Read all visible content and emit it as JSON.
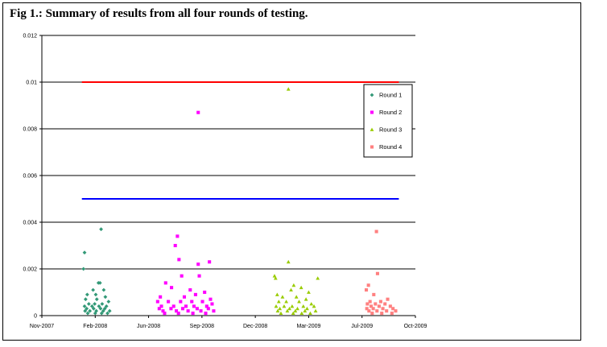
{
  "chart_data": {
    "type": "scatter",
    "title": "Fig 1.: Summary of results from all four rounds of testing.",
    "xlabel": "",
    "ylabel": "",
    "ylim": [
      0,
      0.012
    ],
    "yticks": [
      "0",
      "0.002",
      "0.004",
      "0.006",
      "0.008",
      "0.01",
      "0.012"
    ],
    "xlim": [
      "2007-11-01",
      "2009-10-01"
    ],
    "xticks": [
      "Nov-2007",
      "Feb-2008",
      "Jun-2008",
      "Sep-2008",
      "Dec-2008",
      "Mar-2009",
      "Jul-2009",
      "Oct-2009"
    ],
    "grid": "horizontal major gridlines",
    "legend_position": "right",
    "reference_lines": [
      {
        "y": 0.01,
        "color": "#ff0000",
        "x_start": "2008-01-15",
        "x_end": "2009-08-31"
      },
      {
        "y": 0.005,
        "color": "#0000ff",
        "x_start": "2008-01-15",
        "x_end": "2009-08-31"
      }
    ],
    "series": [
      {
        "name": "Round 1",
        "color": "#339977",
        "marker": "diamond",
        "points": [
          [
            "2008-02-20",
            0.0037
          ],
          [
            "2008-01-20",
            0.0027
          ],
          [
            "2008-01-18",
            0.002
          ],
          [
            "2008-02-15",
            0.0014
          ],
          [
            "2008-02-18",
            0.0014
          ],
          [
            "2008-02-05",
            0.0011
          ],
          [
            "2008-02-25",
            0.0011
          ],
          [
            "2008-01-25",
            0.0009
          ],
          [
            "2008-02-10",
            0.0009
          ],
          [
            "2008-02-28",
            0.0008
          ],
          [
            "2008-01-22",
            0.0007
          ],
          [
            "2008-02-12",
            0.0007
          ],
          [
            "2008-03-05",
            0.0006
          ],
          [
            "2008-01-28",
            0.0005
          ],
          [
            "2008-02-08",
            0.0005
          ],
          [
            "2008-02-22",
            0.0005
          ],
          [
            "2008-01-20",
            0.0004
          ],
          [
            "2008-02-03",
            0.0004
          ],
          [
            "2008-02-16",
            0.0004
          ],
          [
            "2008-03-01",
            0.0004
          ],
          [
            "2008-01-24",
            0.0003
          ],
          [
            "2008-02-06",
            0.0003
          ],
          [
            "2008-02-19",
            0.0003
          ],
          [
            "2008-02-27",
            0.0003
          ],
          [
            "2008-01-21",
            0.0002
          ],
          [
            "2008-01-30",
            0.0002
          ],
          [
            "2008-02-11",
            0.0002
          ],
          [
            "2008-02-24",
            0.0002
          ],
          [
            "2008-03-07",
            0.0002
          ],
          [
            "2008-01-26",
            0.0001
          ],
          [
            "2008-02-09",
            0.0001
          ],
          [
            "2008-02-21",
            0.0001
          ],
          [
            "2008-03-03",
            0.0001
          ]
        ]
      },
      {
        "name": "Round 2",
        "color": "#ff00ff",
        "marker": "square",
        "points": [
          [
            "2008-08-20",
            0.0087
          ],
          [
            "2008-07-12",
            0.0034
          ],
          [
            "2008-07-08",
            0.003
          ],
          [
            "2008-07-15",
            0.0024
          ],
          [
            "2008-08-20",
            0.0022
          ],
          [
            "2008-09-10",
            0.0023
          ],
          [
            "2008-07-20",
            0.0017
          ],
          [
            "2008-08-22",
            0.0017
          ],
          [
            "2008-06-20",
            0.0014
          ],
          [
            "2008-07-01",
            0.0012
          ],
          [
            "2008-08-05",
            0.0011
          ],
          [
            "2008-09-01",
            0.001
          ],
          [
            "2008-06-10",
            0.0008
          ],
          [
            "2008-07-25",
            0.0008
          ],
          [
            "2008-08-15",
            0.0009
          ],
          [
            "2008-09-12",
            0.0007
          ],
          [
            "2008-06-05",
            0.0006
          ],
          [
            "2008-06-25",
            0.0006
          ],
          [
            "2008-07-18",
            0.0006
          ],
          [
            "2008-08-08",
            0.0006
          ],
          [
            "2008-08-28",
            0.0006
          ],
          [
            "2008-09-15",
            0.0005
          ],
          [
            "2008-06-12",
            0.0004
          ],
          [
            "2008-07-05",
            0.0004
          ],
          [
            "2008-07-28",
            0.0004
          ],
          [
            "2008-08-12",
            0.0004
          ],
          [
            "2008-09-05",
            0.0004
          ],
          [
            "2008-06-08",
            0.0003
          ],
          [
            "2008-06-30",
            0.0003
          ],
          [
            "2008-07-22",
            0.0003
          ],
          [
            "2008-08-18",
            0.0003
          ],
          [
            "2008-09-08",
            0.0003
          ],
          [
            "2008-06-15",
            0.0002
          ],
          [
            "2008-07-10",
            0.0002
          ],
          [
            "2008-08-01",
            0.0002
          ],
          [
            "2008-08-25",
            0.0002
          ],
          [
            "2008-09-18",
            0.0002
          ],
          [
            "2008-06-18",
            0.0001
          ],
          [
            "2008-07-14",
            0.0001
          ],
          [
            "2008-08-10",
            0.0001
          ],
          [
            "2008-09-03",
            0.0001
          ]
        ]
      },
      {
        "name": "Round 3",
        "color": "#99cc00",
        "marker": "triangle",
        "points": [
          [
            "2009-02-05",
            0.0097
          ],
          [
            "2009-02-05",
            0.0023
          ],
          [
            "2009-01-10",
            0.0017
          ],
          [
            "2009-01-12",
            0.0016
          ],
          [
            "2009-04-01",
            0.0016
          ],
          [
            "2009-02-15",
            0.0013
          ],
          [
            "2009-03-01",
            0.0012
          ],
          [
            "2009-02-10",
            0.0011
          ],
          [
            "2009-03-15",
            0.001
          ],
          [
            "2009-01-15",
            0.0009
          ],
          [
            "2009-01-25",
            0.0008
          ],
          [
            "2009-02-20",
            0.0008
          ],
          [
            "2009-03-10",
            0.0007
          ],
          [
            "2009-01-18",
            0.0006
          ],
          [
            "2009-02-01",
            0.0006
          ],
          [
            "2009-02-25",
            0.0006
          ],
          [
            "2009-03-20",
            0.0005
          ],
          [
            "2009-01-13",
            0.0004
          ],
          [
            "2009-01-28",
            0.0004
          ],
          [
            "2009-02-12",
            0.0004
          ],
          [
            "2009-03-05",
            0.0004
          ],
          [
            "2009-03-25",
            0.0004
          ],
          [
            "2009-01-20",
            0.0003
          ],
          [
            "2009-02-07",
            0.0003
          ],
          [
            "2009-02-22",
            0.0003
          ],
          [
            "2009-03-12",
            0.0003
          ],
          [
            "2009-01-16",
            0.0002
          ],
          [
            "2009-02-03",
            0.0002
          ],
          [
            "2009-02-18",
            0.0002
          ],
          [
            "2009-03-08",
            0.0002
          ],
          [
            "2009-03-28",
            0.0002
          ],
          [
            "2009-01-22",
            0.0001
          ],
          [
            "2009-02-14",
            0.0001
          ],
          [
            "2009-03-02",
            0.0001
          ],
          [
            "2009-03-18",
            0.0001
          ]
        ]
      },
      {
        "name": "Round 4",
        "color": "#ff8080",
        "marker": "square",
        "points": [
          [
            "2009-07-20",
            0.0036
          ],
          [
            "2009-07-22",
            0.0018
          ],
          [
            "2009-07-05",
            0.0013
          ],
          [
            "2009-07-01",
            0.0011
          ],
          [
            "2009-07-15",
            0.0009
          ],
          [
            "2009-08-10",
            0.0007
          ],
          [
            "2009-07-08",
            0.0006
          ],
          [
            "2009-07-28",
            0.0006
          ],
          [
            "2009-07-03",
            0.0005
          ],
          [
            "2009-07-18",
            0.0005
          ],
          [
            "2009-08-05",
            0.0005
          ],
          [
            "2009-07-10",
            0.0004
          ],
          [
            "2009-07-25",
            0.0004
          ],
          [
            "2009-08-15",
            0.0004
          ],
          [
            "2009-07-02",
            0.0003
          ],
          [
            "2009-07-14",
            0.0003
          ],
          [
            "2009-08-01",
            0.0003
          ],
          [
            "2009-08-20",
            0.0003
          ],
          [
            "2009-07-06",
            0.0002
          ],
          [
            "2009-07-21",
            0.0002
          ],
          [
            "2009-08-08",
            0.0002
          ],
          [
            "2009-08-25",
            0.0002
          ],
          [
            "2009-07-12",
            0.0001
          ],
          [
            "2009-07-30",
            0.0001
          ],
          [
            "2009-08-18",
            0.0001
          ]
        ]
      }
    ]
  }
}
